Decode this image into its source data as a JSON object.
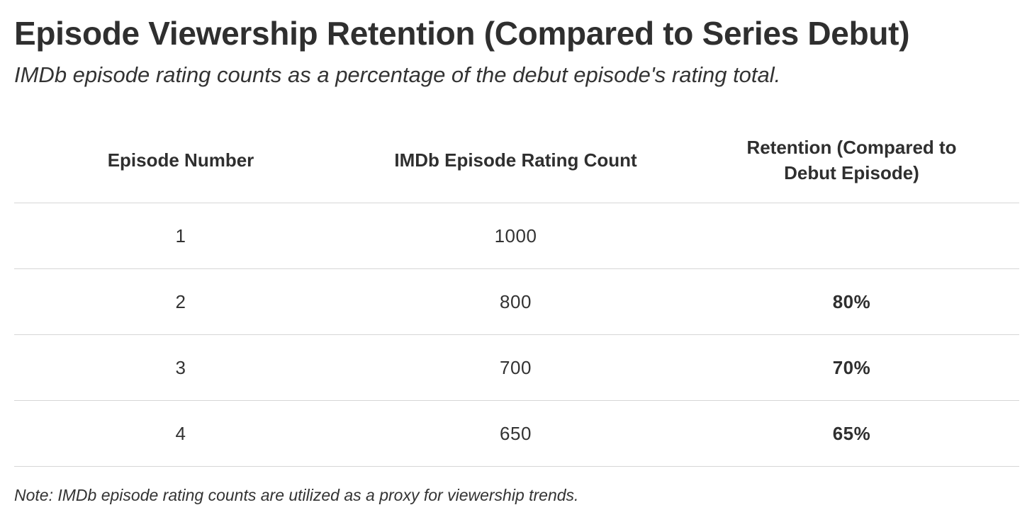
{
  "title": "Episode Viewership Retention (Compared to Series Debut)",
  "subtitle": "IMDb episode rating counts as a percentage of the debut episode's rating total.",
  "note": "Note: IMDb episode rating counts are utilized as a proxy for viewership trends.",
  "chart_data": {
    "type": "table",
    "title": "Episode Viewership Retention (Compared to Series Debut)",
    "subtitle": "IMDb episode rating counts as a percentage of the debut episode's rating total.",
    "columns": [
      "Episode Number",
      "IMDb Episode Rating Count",
      "Retention (Compared to Debut Episode)"
    ],
    "rows": [
      [
        "1",
        "1000",
        ""
      ],
      [
        "2",
        "800",
        "80%"
      ],
      [
        "3",
        "700",
        "70%"
      ],
      [
        "4",
        "650",
        "65%"
      ]
    ]
  }
}
